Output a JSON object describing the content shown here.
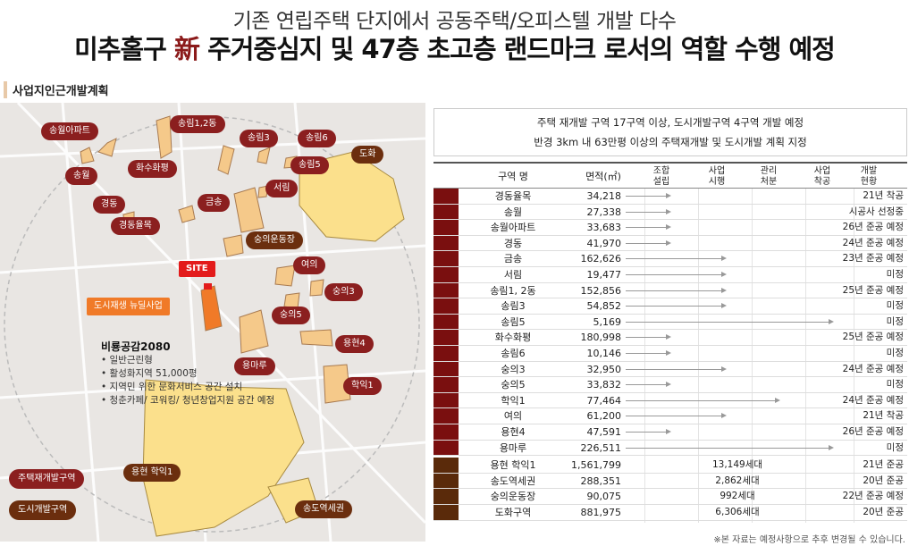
{
  "header": {
    "subtitle": "기존 연립주택 단지에서 공동주택/오피스텔 개발 다수",
    "title_part1": "미추홀구 ",
    "title_accent": "新",
    "title_part2": " 주거중심지 및 47층 초고층 랜드마크 로서의 역할 수행 예정"
  },
  "section_label": "사업지인근개발계획",
  "map": {
    "labels": {
      "songwol_apt": "송월아파트",
      "songnim12": "송림1,2동",
      "songnim3": "송림3",
      "songnim6": "송림6",
      "songnim5": "송림5",
      "dohwa": "도화",
      "songwol": "송월",
      "hwasuhwapyeong": "화수화평",
      "gyeongdong": "경동",
      "geumsong": "금송",
      "seorim": "서림",
      "gyeongdongyulmok": "경동율목",
      "sungui_stadium": "숭의운동장",
      "site": "SITE",
      "yeoui": "여의",
      "sungui3": "숭의3",
      "sungui5": "숭의5",
      "urban_regen": "도시재생 뉴딜사업",
      "yonghyeon4": "용현4",
      "yongmaru": "용마루",
      "hagik1": "학익1",
      "yonghyeon_hagik1": "용현 학익1",
      "songdo_station": "송도역세권"
    },
    "biryong": {
      "title": "비룡공감2080",
      "items": [
        "일반근린형",
        "활성화지역 51,000평",
        "지역민 위한 문화서비스 공간 설치",
        "청춘카페/ 코워킹/ 청년창업지원 공간 예정"
      ]
    },
    "legend": {
      "housing": "주택재개발구역",
      "urban": "도시개발구역"
    },
    "colors": {
      "red_label": "#8b1f1f",
      "brown_label": "#6b2e0e",
      "zone_fill": "#f5c98a",
      "dev_fill": "#fbe08c"
    }
  },
  "notes": {
    "line1": "주택 재개발 구역 17구역 이상, 도시개발구역 4구역 개발 예정",
    "line2": "반경 3km 내 63만평 이상의 주택재개발 및 도시개발 계획 지정"
  },
  "table": {
    "headers": {
      "name": "구역 명",
      "area": "면적(㎡)",
      "s1": [
        "조합",
        "설립"
      ],
      "s2": [
        "사업",
        "시행"
      ],
      "s3": [
        "관리",
        "처분"
      ],
      "s4": [
        "사업",
        "착공"
      ],
      "s5": [
        "개발",
        "현황"
      ]
    },
    "redevelopment": [
      {
        "name": "경동율목",
        "area": "34,218",
        "stage": 1,
        "status": "21년 착공"
      },
      {
        "name": "송월",
        "area": "27,338",
        "stage": 1,
        "status": "시공사 선정중"
      },
      {
        "name": "송월아파트",
        "area": "33,683",
        "stage": 1,
        "status": "26년 준공 예정"
      },
      {
        "name": "경동",
        "area": "41,970",
        "stage": 1,
        "status": "24년 준공 예정"
      },
      {
        "name": "금송",
        "area": "162,626",
        "stage": 2,
        "status": "23년 준공 예정"
      },
      {
        "name": "서림",
        "area": "19,477",
        "stage": 2,
        "status": "미정"
      },
      {
        "name": "송림1, 2동",
        "area": "152,856",
        "stage": 2,
        "status": "25년 준공 예정"
      },
      {
        "name": "송림3",
        "area": "54,852",
        "stage": 2,
        "status": "미정"
      },
      {
        "name": "송림5",
        "area": "5,169",
        "stage": 4,
        "status": "미정"
      },
      {
        "name": "화수화평",
        "area": "180,998",
        "stage": 1,
        "status": "25년 준공 예정"
      },
      {
        "name": "송림6",
        "area": "10,146",
        "stage": 1,
        "status": "미정"
      },
      {
        "name": "숭의3",
        "area": "32,950",
        "stage": 2,
        "status": "24년 준공 예정"
      },
      {
        "name": "숭의5",
        "area": "33,832",
        "stage": 1,
        "status": "미정"
      },
      {
        "name": "학익1",
        "area": "77,464",
        "stage": 3,
        "status": "24년 준공 예정"
      },
      {
        "name": "여의",
        "area": "61,200",
        "stage": 2,
        "status": "21년 착공"
      },
      {
        "name": "용현4",
        "area": "47,591",
        "stage": 1,
        "status": "26년 준공 예정"
      },
      {
        "name": "용마루",
        "area": "226,511",
        "stage": 4,
        "status": "미정"
      }
    ],
    "urban": [
      {
        "name": "용현 학익1",
        "area": "1,561,799",
        "units": "13,149세대",
        "status": "21년 준공"
      },
      {
        "name": "송도역세권",
        "area": "288,351",
        "units": "2,862세대",
        "status": "20년 준공"
      },
      {
        "name": "숭의운동장",
        "area": "90,075",
        "units": "992세대",
        "status": "22년 준공 예정"
      },
      {
        "name": "도화구역",
        "area": "881,975",
        "units": "6,306세대",
        "status": "20년 준공"
      }
    ]
  },
  "footnote": "※본 자료는 예정사항으로 추후 변경될 수 있습니다."
}
